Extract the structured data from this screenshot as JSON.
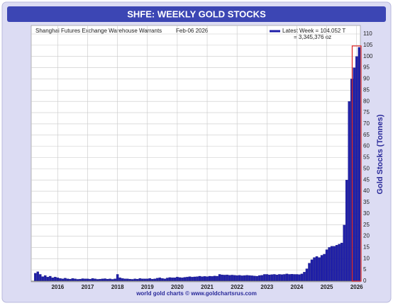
{
  "chart_data": {
    "type": "bar",
    "title": "SHFE: WEEKLY GOLD STOCKS",
    "subtitle": "Shanghai Futures Exchange Warehouse Warrants",
    "date_label": "Feb-06  2026",
    "annotations": [
      "= 3,345,376 oz"
    ],
    "ylabel": "Gold Stocks (Tonnes)",
    "source": "world gold charts © www.goldchartsrus.com",
    "categories": [
      null,
      null,
      null,
      null,
      null,
      null,
      null,
      null,
      null,
      "2016",
      null,
      null,
      null,
      null,
      null,
      null,
      null,
      null,
      null,
      null,
      null,
      "2017",
      null,
      null,
      null,
      null,
      null,
      null,
      null,
      null,
      null,
      null,
      null,
      "2018",
      null,
      null,
      null,
      null,
      null,
      null,
      null,
      null,
      null,
      null,
      null,
      "2019",
      null,
      null,
      null,
      null,
      null,
      null,
      null,
      null,
      null,
      null,
      null,
      "2020",
      null,
      null,
      null,
      null,
      null,
      null,
      null,
      null,
      null,
      null,
      null,
      "2021",
      null,
      null,
      null,
      null,
      null,
      null,
      null,
      null,
      null,
      null,
      null,
      "2022",
      null,
      null,
      null,
      null,
      null,
      null,
      null,
      null,
      null,
      null,
      null,
      "2023",
      null,
      null,
      null,
      null,
      null,
      null,
      null,
      null,
      null,
      null,
      null,
      "2024",
      null,
      null,
      null,
      null,
      null,
      null,
      null,
      null,
      null,
      null,
      null,
      "2025",
      null,
      null,
      null,
      null,
      null,
      null,
      null,
      null,
      null,
      null,
      null,
      "2026",
      null
    ],
    "series": [
      {
        "name": "Latest Week = 104.052 T",
        "color": "#1f1fa8",
        "values": [
          3.5,
          4.2,
          3.0,
          2.0,
          2.5,
          1.8,
          2.2,
          1.5,
          1.8,
          1.5,
          1.2,
          1.0,
          1.3,
          1.0,
          0.9,
          1.2,
          1.0,
          0.8,
          0.9,
          1.1,
          1.0,
          1.0,
          0.9,
          1.2,
          1.0,
          0.8,
          0.9,
          1.0,
          1.1,
          0.9,
          1.0,
          0.8,
          1.0,
          3.0,
          1.5,
          1.2,
          1.0,
          1.0,
          0.9,
          0.8,
          1.0,
          0.9,
          1.2,
          1.0,
          1.0,
          1.0,
          1.2,
          0.9,
          1.0,
          1.3,
          1.5,
          1.2,
          1.0,
          1.4,
          1.6,
          1.5,
          1.5,
          1.8,
          1.6,
          1.5,
          1.7,
          1.8,
          2.0,
          1.8,
          1.9,
          2.0,
          2.2,
          2.0,
          2.1,
          2.0,
          2.2,
          2.1,
          2.3,
          2.2,
          3.0,
          2.8,
          2.7,
          2.8,
          2.6,
          2.7,
          2.6,
          2.5,
          2.6,
          2.4,
          2.5,
          2.6,
          2.5,
          2.4,
          2.3,
          2.2,
          2.5,
          2.6,
          3.0,
          3.0,
          2.8,
          2.9,
          3.0,
          2.8,
          3.0,
          2.9,
          3.0,
          3.2,
          3.0,
          3.1,
          3.0,
          3.0,
          2.9,
          3.2,
          4.0,
          5.5,
          8.0,
          9.5,
          10.5,
          11.0,
          10.5,
          11.5,
          12.0,
          14.0,
          15.0,
          15.5,
          15.5,
          16.0,
          16.5,
          17.0,
          25.0,
          45.0,
          80.0,
          90.0,
          95.0,
          100.0,
          104.052
        ]
      }
    ],
    "ylim": [
      0,
      110
    ],
    "yticks": [
      0,
      5,
      10,
      15,
      20,
      25,
      30,
      35,
      40,
      45,
      50,
      55,
      60,
      65,
      70,
      75,
      80,
      85,
      90,
      95,
      100,
      105,
      110
    ],
    "grid": true
  }
}
